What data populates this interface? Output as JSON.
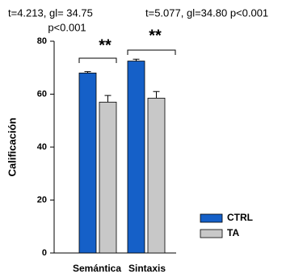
{
  "chart_data": {
    "type": "bar",
    "y_label": "Calificación",
    "categories": [
      "Semántica",
      "Sintaxis"
    ],
    "series": [
      {
        "name": "CTRL",
        "color": "#1560c8",
        "values": [
          68,
          72.5
        ],
        "errors": [
          0.5,
          0.7
        ]
      },
      {
        "name": "TA",
        "color": "#c8c8c8",
        "values": [
          57,
          58.5
        ],
        "errors": [
          2.5,
          2.5
        ]
      }
    ],
    "ylim": [
      0,
      80
    ],
    "yticks": [
      0,
      20,
      40,
      60,
      80
    ],
    "grid": false,
    "legend": "lower right",
    "annotations": [
      "t=4.213, gl= 34.75",
      "p<0.001",
      "t=5.077, gl=34.80 p<0.001",
      "**",
      "**"
    ]
  }
}
